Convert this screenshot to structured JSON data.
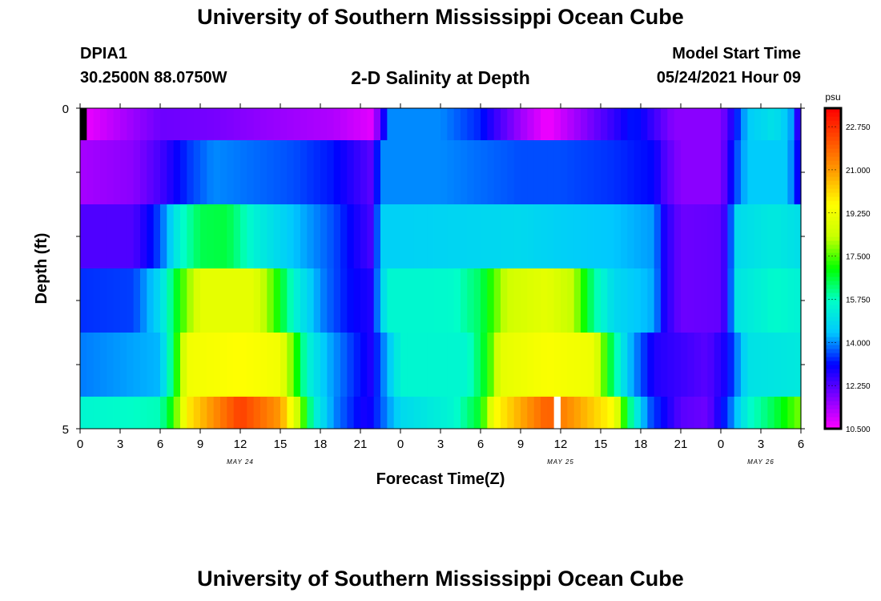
{
  "page": {
    "title_top": "University of Southern Mississippi Ocean Cube",
    "title_bottom": "University of Southern Mississippi Ocean Cube",
    "station": "DPIA1",
    "coords": "30.2500N  88.0750W",
    "subtitle": "2-D Salinity at Depth",
    "model_start_label": "Model Start Time",
    "model_start_value": "05/24/2021 Hour 09"
  },
  "chart_data": {
    "type": "heatmap",
    "title": "2-D Salinity at Depth",
    "xlabel": "Forecast Time(Z)",
    "ylabel": "Depth (ft)",
    "x_tick_labels": [
      "0",
      "3",
      "6",
      "9",
      "12",
      "15",
      "18",
      "21",
      "0",
      "3",
      "6",
      "9",
      "12",
      "15",
      "18",
      "21",
      "0",
      "3",
      "6"
    ],
    "x_tick_hours": [
      0,
      3,
      6,
      9,
      12,
      15,
      18,
      21,
      24,
      27,
      30,
      33,
      36,
      39,
      42,
      45,
      48,
      51,
      54
    ],
    "date_labels": [
      {
        "hour": 12,
        "text": "MAY 24"
      },
      {
        "hour": 36,
        "text": "MAY 25"
      },
      {
        "hour": 51,
        "text": "MAY 26"
      }
    ],
    "xlim": [
      0,
      54
    ],
    "ylim": [
      0,
      5
    ],
    "y_tick_labels": [
      "0",
      "5"
    ],
    "colorbar": {
      "unit": "psu",
      "min": 10.5,
      "max": 23.5,
      "tick_values": [
        10.5,
        12.25,
        14.0,
        15.75,
        17.5,
        19.25,
        21.0,
        22.75
      ],
      "tick_labels": [
        "10.500",
        "12.250",
        "14.000",
        "15.750",
        "17.500",
        "19.250",
        "21.000",
        "22.750"
      ],
      "palette": [
        "#ff00ff",
        "#8000ff",
        "#0000ff",
        "#00c8ff",
        "#00ffc8",
        "#00ff00",
        "#c8ff00",
        "#ffff00",
        "#ffa000",
        "#ff5000",
        "#ff0000"
      ]
    },
    "layers": [
      {
        "depth_from": 0,
        "depth_to": 0.5,
        "keyframes": [
          [
            0,
            10.6
          ],
          [
            3,
            11.3
          ],
          [
            6,
            12.0
          ],
          [
            10,
            11.9
          ],
          [
            14,
            11.6
          ],
          [
            19,
            11.3
          ],
          [
            21.8,
            10.8
          ],
          [
            22.6,
            12.3
          ],
          [
            23,
            14.0
          ],
          [
            27,
            14.0
          ],
          [
            30,
            13.3
          ],
          [
            31,
            12.6
          ],
          [
            33,
            11.5
          ],
          [
            35,
            10.6
          ],
          [
            37,
            11.4
          ],
          [
            40,
            12.6
          ],
          [
            41.5,
            13.3
          ],
          [
            43.5,
            12.2
          ],
          [
            44.5,
            11.7
          ],
          [
            48,
            11.7
          ],
          [
            49,
            13.0
          ],
          [
            50,
            14.5
          ],
          [
            52,
            15.0
          ],
          [
            53.2,
            14.3
          ],
          [
            53.8,
            12.6
          ]
        ]
      },
      {
        "depth_from": 0.5,
        "depth_to": 1.5,
        "keyframes": [
          [
            0,
            11.4
          ],
          [
            4,
            11.7
          ],
          [
            6,
            12.4
          ],
          [
            8,
            13.4
          ],
          [
            10,
            14.0
          ],
          [
            13,
            13.8
          ],
          [
            16,
            13.6
          ],
          [
            19,
            13.2
          ],
          [
            21.8,
            12.2
          ],
          [
            22.6,
            14.0
          ],
          [
            27,
            14.0
          ],
          [
            30,
            13.8
          ],
          [
            33,
            13.6
          ],
          [
            36,
            13.6
          ],
          [
            40,
            13.4
          ],
          [
            43,
            13.1
          ],
          [
            43.8,
            12.3
          ],
          [
            45,
            11.7
          ],
          [
            48,
            11.7
          ],
          [
            49,
            13.4
          ],
          [
            50,
            14.5
          ],
          [
            53,
            14.5
          ],
          [
            53.8,
            13.0
          ]
        ]
      },
      {
        "depth_from": 1.5,
        "depth_to": 2.5,
        "keyframes": [
          [
            0,
            12.3
          ],
          [
            4,
            12.3
          ],
          [
            6,
            13.6
          ],
          [
            7.5,
            15.5
          ],
          [
            9,
            16.5
          ],
          [
            11,
            16.6
          ],
          [
            13,
            15.4
          ],
          [
            16,
            14.4
          ],
          [
            19,
            13.6
          ],
          [
            21.8,
            12.4
          ],
          [
            22.6,
            14.6
          ],
          [
            33,
            14.8
          ],
          [
            36,
            14.6
          ],
          [
            40,
            14.4
          ],
          [
            43,
            14.1
          ],
          [
            43.8,
            12.8
          ],
          [
            45,
            12.0
          ],
          [
            48,
            12.1
          ],
          [
            48.6,
            13.0
          ],
          [
            49,
            14.8
          ],
          [
            52,
            15.2
          ],
          [
            54,
            14.9
          ]
        ]
      },
      {
        "depth_from": 2.5,
        "depth_to": 3.5,
        "keyframes": [
          [
            0,
            13.4
          ],
          [
            4,
            13.5
          ],
          [
            6,
            14.8
          ],
          [
            7.5,
            17.2
          ],
          [
            9,
            19.0
          ],
          [
            13,
            19.0
          ],
          [
            14.5,
            17.5
          ],
          [
            16,
            15.5
          ],
          [
            18,
            14.0
          ],
          [
            20,
            13.2
          ],
          [
            21.8,
            12.8
          ],
          [
            23,
            15.5
          ],
          [
            28,
            15.6
          ],
          [
            30,
            16.4
          ],
          [
            32,
            18.5
          ],
          [
            35,
            19.0
          ],
          [
            37,
            18.2
          ],
          [
            38.5,
            16.0
          ],
          [
            40,
            14.8
          ],
          [
            43,
            14.2
          ],
          [
            43.8,
            12.8
          ],
          [
            45,
            12.0
          ],
          [
            48,
            12.1
          ],
          [
            48.6,
            13.0
          ],
          [
            49,
            15.0
          ],
          [
            52,
            15.6
          ],
          [
            54,
            15.4
          ]
        ]
      },
      {
        "depth_from": 3.5,
        "depth_to": 4.5,
        "keyframes": [
          [
            0,
            13.9
          ],
          [
            6,
            14.3
          ],
          [
            7,
            16.5
          ],
          [
            8,
            19.3
          ],
          [
            12,
            19.6
          ],
          [
            15,
            19.3
          ],
          [
            16,
            17.5
          ],
          [
            17,
            15.5
          ],
          [
            18.5,
            14.3
          ],
          [
            21.8,
            12.8
          ],
          [
            24,
            15.5
          ],
          [
            29,
            15.5
          ],
          [
            30.5,
            17.0
          ],
          [
            31.5,
            19.0
          ],
          [
            35,
            19.5
          ],
          [
            38.5,
            19.2
          ],
          [
            39.5,
            17.0
          ],
          [
            41,
            14.5
          ],
          [
            43,
            12.8
          ],
          [
            47,
            12.2
          ],
          [
            48.5,
            13.0
          ],
          [
            50,
            15.0
          ],
          [
            54,
            15.2
          ]
        ]
      },
      {
        "depth_from": 4.5,
        "depth_to": 5.0,
        "keyframes": [
          [
            0,
            15.5
          ],
          [
            6,
            15.8
          ],
          [
            7,
            17.2
          ],
          [
            8,
            19.8
          ],
          [
            12,
            22.5
          ],
          [
            15,
            21.0
          ],
          [
            16.5,
            18.0
          ],
          [
            17.5,
            15.5
          ],
          [
            19,
            14.0
          ],
          [
            21.5,
            12.8
          ],
          [
            24,
            14.8
          ],
          [
            28,
            15.5
          ],
          [
            30,
            16.8
          ],
          [
            31,
            19.5
          ],
          [
            35,
            22.0
          ],
          [
            37,
            21.0
          ],
          [
            40,
            19.5
          ],
          [
            41,
            16.5
          ],
          [
            42.5,
            13.8
          ],
          [
            45,
            12.2
          ],
          [
            47,
            12.0
          ],
          [
            48.5,
            13.5
          ],
          [
            50,
            15.5
          ],
          [
            52,
            16.5
          ],
          [
            53.5,
            17.5
          ],
          [
            54,
            17.8
          ]
        ]
      }
    ],
    "missing_cells": [
      {
        "hour": 0,
        "depth_from": 0,
        "depth_to": 0.5,
        "color": "#000000"
      },
      {
        "hour": 35.5,
        "depth_from": 4.5,
        "depth_to": 5.0,
        "color": "#ffffff"
      }
    ]
  }
}
